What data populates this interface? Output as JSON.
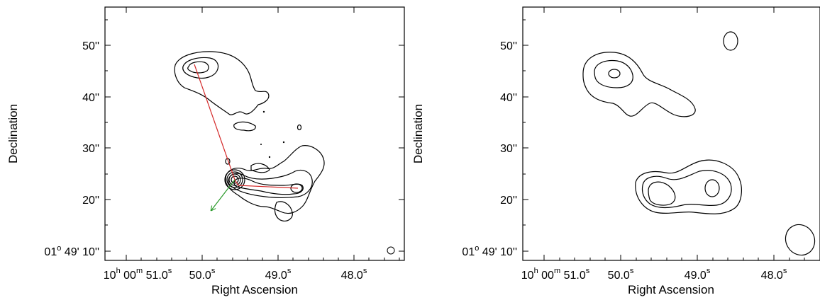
{
  "chart_data": [
    {
      "type": "contour-map",
      "panel": "left",
      "xlabel": "Right Ascension",
      "ylabel": "Declination",
      "x_ticks": [
        {
          "label_main": "10",
          "label_sup1": "h",
          "label_mid": " 00",
          "label_sup2": "m",
          "label_tail": " 51.0",
          "label_sup3": "s"
        },
        {
          "label_main": "50.0",
          "label_sup": "s"
        },
        {
          "label_main": "49.0",
          "label_sup": "s"
        },
        {
          "label_main": "48.0",
          "label_sup": "s"
        }
      ],
      "y_ticks": [
        {
          "label": "50''"
        },
        {
          "label": "40''"
        },
        {
          "label": "30''"
        },
        {
          "label": "20''"
        },
        {
          "label_main": "01",
          "label_sup": "o",
          "label_tail": " 49' 10''"
        }
      ],
      "overlay_lines": [
        {
          "color": "#d42a2a",
          "from": "core",
          "to": "north lobe hotspot"
        },
        {
          "color": "#d42a2a",
          "from": "core",
          "to": "east lobe hotspot"
        },
        {
          "color": "#2a9a2a",
          "from": "core",
          "to": "south-east",
          "arrow": true
        }
      ],
      "beam": "small circle, lower-right"
    },
    {
      "type": "contour-map",
      "panel": "right",
      "xlabel": "Right Ascension",
      "ylabel": "Declination",
      "x_ticks": [
        {
          "label_main": "10",
          "label_sup1": "h",
          "label_mid": " 00",
          "label_sup2": "m",
          "label_tail": " 51.0",
          "label_sup3": "s"
        },
        {
          "label_main": "50.0",
          "label_sup": "s"
        },
        {
          "label_main": "49.0",
          "label_sup": "s"
        },
        {
          "label_main": "48.0",
          "label_sup": "s"
        }
      ],
      "y_ticks": [
        {
          "label": "50''"
        },
        {
          "label": "40''"
        },
        {
          "label": "30''"
        },
        {
          "label": "20''"
        },
        {
          "label_main": "01",
          "label_sup": "o",
          "label_tail": " 49' 10''"
        }
      ],
      "beam": "large ellipse, lower-right"
    }
  ],
  "colors": {
    "contour": "#000000",
    "fill_light": "#dedede",
    "fill_mid": "#b4b4b4",
    "fill_dark": "#5a5a5a",
    "red_line": "#d42a2a",
    "green_arrow": "#2a9a2a"
  }
}
